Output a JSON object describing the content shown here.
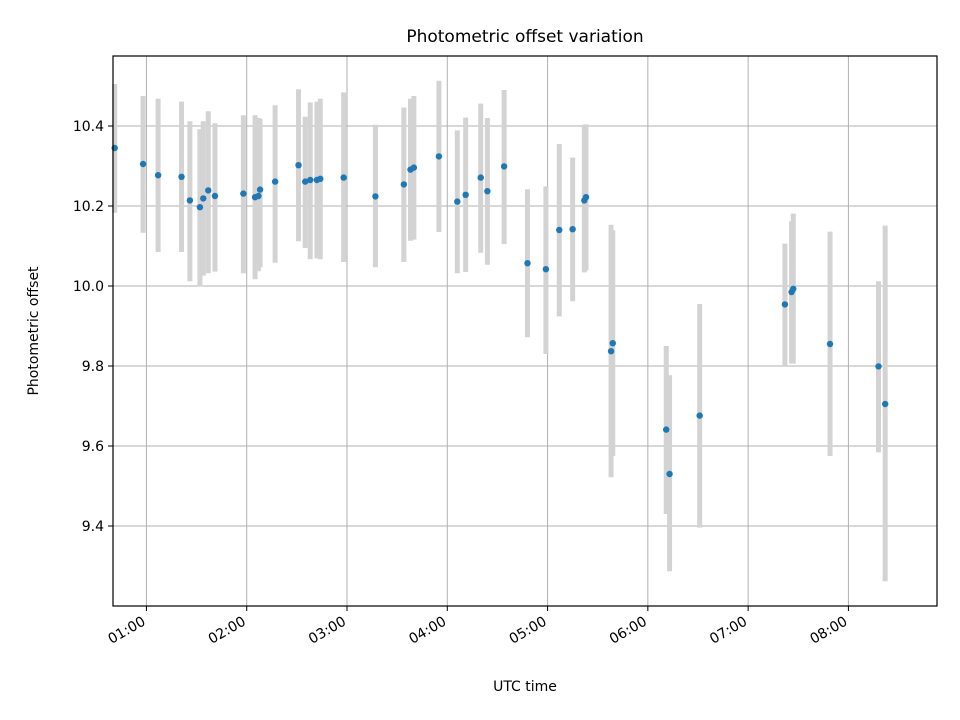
{
  "chart_data": {
    "type": "scatter",
    "title": "Photometric offset variation",
    "xlabel": "UTC time",
    "ylabel": "Photometric offset",
    "xlim": [
      "00:40",
      "08:53"
    ],
    "ylim": [
      9.2,
      10.575
    ],
    "grid": true,
    "x_ticks": [
      "01:00",
      "02:00",
      "03:00",
      "04:00",
      "05:00",
      "06:00",
      "07:00",
      "08:00"
    ],
    "y_ticks": [
      "9.4",
      "9.6",
      "9.8",
      "10.0",
      "10.2",
      "10.4"
    ],
    "colors": {
      "point": "#1f77b4",
      "errorbar": "#d3d3d3"
    },
    "series": [
      {
        "x": [
          "00:41",
          "00:58",
          "01:07",
          "01:21",
          "01:26",
          "01:32",
          "01:34",
          "01:37",
          "01:41",
          "01:58",
          "02:05",
          "02:07",
          "02:08",
          "02:17",
          "02:31",
          "02:35",
          "02:38",
          "02:42",
          "02:44",
          "02:58",
          "03:17",
          "03:34",
          "03:38",
          "03:40",
          "03:55",
          "04:06",
          "04:11",
          "04:20",
          "04:24",
          "04:34",
          "04:48",
          "04:59",
          "05:07",
          "05:15",
          "05:22",
          "05:23",
          "05:38",
          "05:39",
          "06:11",
          "06:13",
          "06:31",
          "07:22",
          "07:26",
          "07:27",
          "07:49",
          "08:18",
          "08:22"
        ],
        "y": [
          10.345,
          10.305,
          10.277,
          10.273,
          10.214,
          10.197,
          10.219,
          10.239,
          10.225,
          10.231,
          10.222,
          10.225,
          10.241,
          10.261,
          10.302,
          10.261,
          10.265,
          10.265,
          10.268,
          10.271,
          10.224,
          10.254,
          10.291,
          10.296,
          10.324,
          10.211,
          10.228,
          10.271,
          10.237,
          10.299,
          10.057,
          10.042,
          10.14,
          10.142,
          10.214,
          10.222,
          9.837,
          9.857,
          9.641,
          9.53,
          9.676,
          9.954,
          9.985,
          9.993,
          9.855,
          9.799,
          9.705
        ],
        "yerr_low": [
          10.183,
          10.133,
          10.085,
          10.085,
          10.012,
          9.999,
          10.026,
          10.032,
          10.036,
          10.032,
          10.017,
          10.037,
          10.047,
          10.058,
          10.112,
          10.095,
          10.067,
          10.069,
          10.067,
          10.06,
          10.047,
          10.06,
          10.113,
          10.116,
          10.135,
          10.032,
          10.035,
          10.083,
          10.053,
          10.105,
          9.872,
          9.83,
          9.924,
          9.962,
          10.034,
          10.039,
          9.522,
          9.575,
          9.43,
          9.287,
          9.396,
          9.8,
          9.806,
          9.806,
          9.575,
          9.584,
          9.262
        ],
        "yerr_high": [
          10.505,
          10.475,
          10.468,
          10.461,
          10.412,
          10.392,
          10.412,
          10.437,
          10.407,
          10.427,
          10.427,
          10.42,
          10.418,
          10.452,
          10.492,
          10.423,
          10.459,
          10.461,
          10.468,
          10.484,
          10.403,
          10.446,
          10.468,
          10.475,
          10.513,
          10.389,
          10.421,
          10.456,
          10.42,
          10.49,
          10.242,
          10.249,
          10.355,
          10.321,
          10.403,
          10.404,
          10.153,
          10.139,
          9.85,
          9.777,
          9.955,
          10.106,
          10.162,
          10.181,
          10.136,
          10.012,
          10.151
        ]
      }
    ]
  }
}
